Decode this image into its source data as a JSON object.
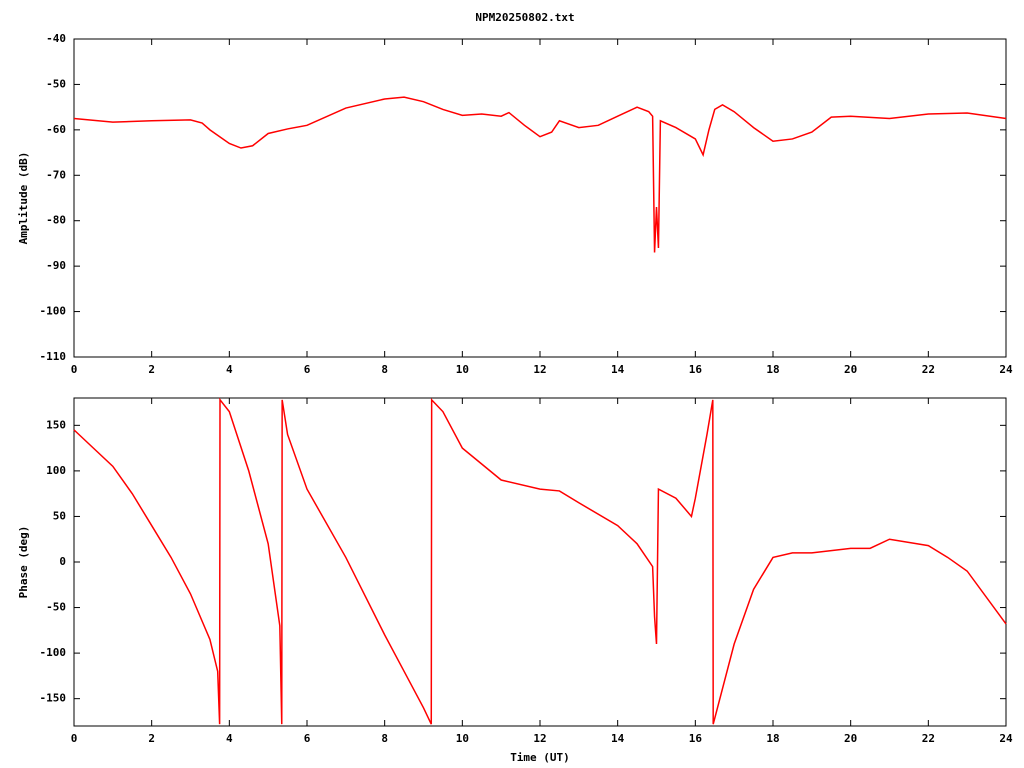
{
  "chart_data": [
    {
      "type": "line",
      "title": "NPM20250802.txt",
      "ylabel": "Amplitude (dB)",
      "x": [
        0,
        1,
        2,
        3,
        3.3,
        3.5,
        4,
        4.3,
        4.6,
        5,
        5.5,
        6,
        7,
        8,
        8.5,
        9,
        9.5,
        10,
        10.5,
        11,
        11.2,
        11.6,
        12,
        12.3,
        12.5,
        13,
        13.5,
        14,
        14.5,
        14.8,
        14.9,
        14.95,
        15.0,
        15.05,
        15.1,
        15.5,
        16,
        16.2,
        16.35,
        16.5,
        16.7,
        17,
        17.5,
        18,
        18.5,
        19,
        19.5,
        20,
        21,
        22,
        23,
        24
      ],
      "color": "#ff0000",
      "values": [
        -57.5,
        -58.3,
        -58,
        -57.8,
        -58.5,
        -60,
        -63,
        -64,
        -63.5,
        -60.8,
        -59.8,
        -59,
        -55.2,
        -53.2,
        -52.8,
        -53.8,
        -55.5,
        -56.8,
        -56.5,
        -57,
        -56.2,
        -59,
        -61.5,
        -60.5,
        -58,
        -59.5,
        -59,
        -57,
        -55,
        -56,
        -57,
        -87,
        -77,
        -86,
        -58,
        -59.5,
        -62,
        -65.5,
        -60,
        -55.5,
        -54.5,
        -56,
        -59.5,
        -62.5,
        -62,
        -60.5,
        -57.2,
        -57,
        -57.5,
        -56.5,
        -56.3,
        -57.5
      ],
      "xlim": [
        0,
        24
      ],
      "xticks": [
        0,
        2,
        4,
        6,
        8,
        10,
        12,
        14,
        16,
        18,
        20,
        22,
        24
      ],
      "ylim": [
        -110,
        -40
      ],
      "yticks": [
        -110,
        -100,
        -90,
        -80,
        -70,
        -60,
        -50,
        -40
      ],
      "grid": false
    },
    {
      "type": "line",
      "xlabel": "Time (UT)",
      "ylabel": "Phase (deg)",
      "x": [
        0,
        0.5,
        1,
        1.5,
        2,
        2.5,
        3,
        3.5,
        3.7,
        3.75,
        3.76,
        4,
        4.5,
        5,
        5.3,
        5.35,
        5.36,
        5.5,
        6,
        7,
        8,
        8.5,
        9,
        9.2,
        9.21,
        9.5,
        10,
        11,
        12,
        12.5,
        13,
        14,
        14.5,
        14.9,
        14.95,
        15.0,
        15.05,
        15.5,
        15.9,
        16,
        16.3,
        16.45,
        16.46,
        17,
        17.5,
        18,
        18.5,
        19,
        20,
        20.5,
        21,
        22,
        22.5,
        23,
        24
      ],
      "color": "#ff0000",
      "values": [
        145,
        125,
        105,
        75,
        40,
        5,
        -35,
        -85,
        -120,
        -178,
        178,
        165,
        100,
        20,
        -70,
        -178,
        178,
        140,
        80,
        5,
        -80,
        -120,
        -160,
        -178,
        178,
        165,
        125,
        90,
        80,
        78,
        65,
        40,
        20,
        -5,
        -60,
        -90,
        80,
        70,
        50,
        70,
        140,
        178,
        -178,
        -90,
        -30,
        5,
        10,
        10,
        15,
        15,
        25,
        18,
        5,
        -10,
        -68
      ],
      "xlim": [
        0,
        24
      ],
      "xticks": [
        0,
        2,
        4,
        6,
        8,
        10,
        12,
        14,
        16,
        18,
        20,
        22,
        24
      ],
      "ylim": [
        -180,
        180
      ],
      "yticks": [
        -150,
        -100,
        -50,
        0,
        50,
        100,
        150
      ],
      "grid": false
    }
  ]
}
